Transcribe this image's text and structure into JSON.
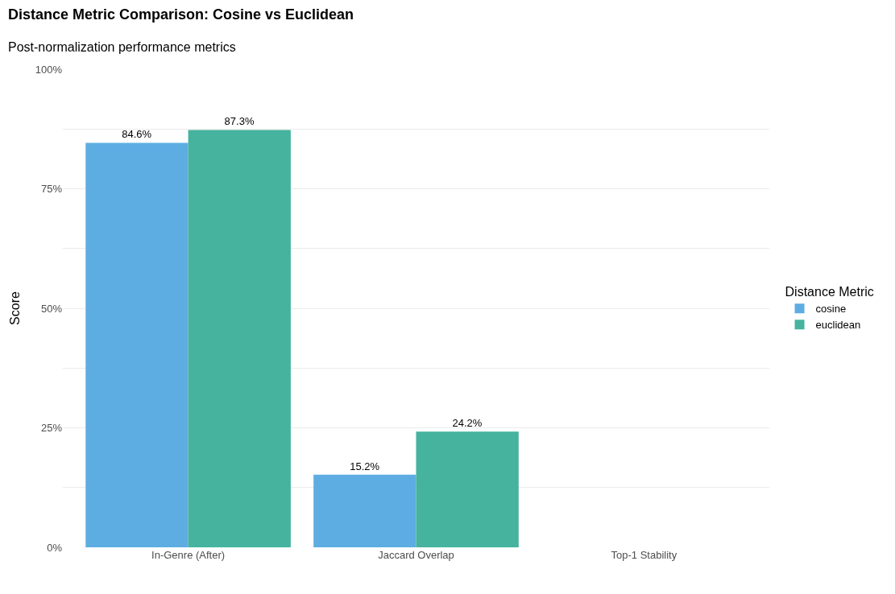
{
  "chart_data": {
    "type": "bar",
    "title": "Distance Metric Comparison: Cosine vs Euclidean",
    "subtitle": "Post-normalization performance metrics",
    "ylabel": "Score",
    "legend_title": "Distance Metric",
    "categories": [
      "In-Genre (After)",
      "Jaccard Overlap",
      "Top-1 Stability"
    ],
    "series": [
      {
        "name": "cosine",
        "color": "#5dade2",
        "values": [
          0.846,
          0.152,
          null
        ],
        "value_labels": [
          "84.6%",
          "15.2%",
          null
        ]
      },
      {
        "name": "euclidean",
        "color": "#45b39d",
        "values": [
          0.873,
          0.242,
          null
        ],
        "value_labels": [
          "87.3%",
          "24.2%",
          null
        ]
      }
    ],
    "ylim": [
      0,
      1.0
    ],
    "yticks": [
      {
        "value": 0,
        "label": "0%"
      },
      {
        "value": 0.125,
        "label": null
      },
      {
        "value": 0.25,
        "label": "25%"
      },
      {
        "value": 0.375,
        "label": null
      },
      {
        "value": 0.5,
        "label": "50%"
      },
      {
        "value": 0.625,
        "label": null
      },
      {
        "value": 0.75,
        "label": "75%"
      },
      {
        "value": 0.875,
        "label": null
      },
      {
        "value": 1.0,
        "label": "100%"
      }
    ],
    "grid": "y",
    "legend": "right"
  }
}
